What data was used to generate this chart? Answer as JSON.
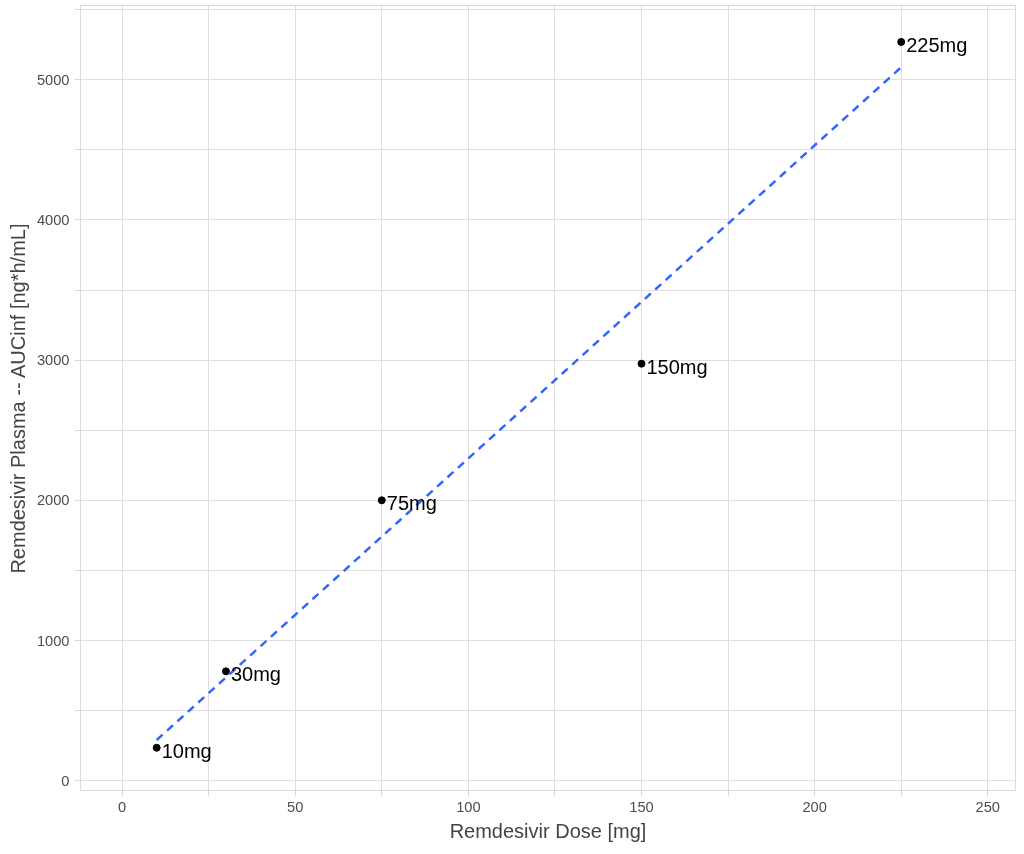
{
  "chart_data": {
    "type": "scatter",
    "xlabel": "Remdesivir Dose [mg]",
    "ylabel": "Remdesivir Plasma -- AUCinf [ng*h/mL]",
    "x": [
      10,
      30,
      75,
      150,
      225
    ],
    "series": [
      {
        "color": "#000000",
        "values": [
          235,
          780,
          2000,
          2975,
          5270
        ],
        "marker": "circle"
      },
      {
        "type": "line",
        "color": "#3366ff",
        "x": [
          10,
          225
        ],
        "values": [
          290,
          5090
        ],
        "line_style": "dashed"
      }
    ],
    "annotations": [
      {
        "text": "10mg",
        "x": 10,
        "y": 235
      },
      {
        "text": "30mg",
        "x": 30,
        "y": 780
      },
      {
        "text": "75mg",
        "x": 75,
        "y": 2000
      },
      {
        "text": "150mg",
        "x": 150,
        "y": 2975
      },
      {
        "text": "225mg",
        "x": 225,
        "y": 5270
      }
    ],
    "xlim": [
      -12,
      258
    ],
    "ylim": [
      -70,
      5530
    ],
    "xticks": [
      0,
      {
        "value": 25,
        "label": null
      },
      50,
      {
        "value": 75,
        "label": null
      },
      100,
      {
        "value": 125,
        "label": null
      },
      150,
      {
        "value": 175,
        "label": null
      },
      200,
      {
        "value": 225,
        "label": null
      },
      250
    ],
    "yticks": [
      0,
      {
        "value": 500,
        "label": null
      },
      1000,
      {
        "value": 1500,
        "label": null
      },
      2000,
      {
        "value": 2500,
        "label": null
      },
      3000,
      {
        "value": 3500,
        "label": null
      },
      4000,
      {
        "value": 4500,
        "label": null
      },
      5000,
      {
        "value": 5500,
        "label": null
      }
    ],
    "grid": true
  }
}
